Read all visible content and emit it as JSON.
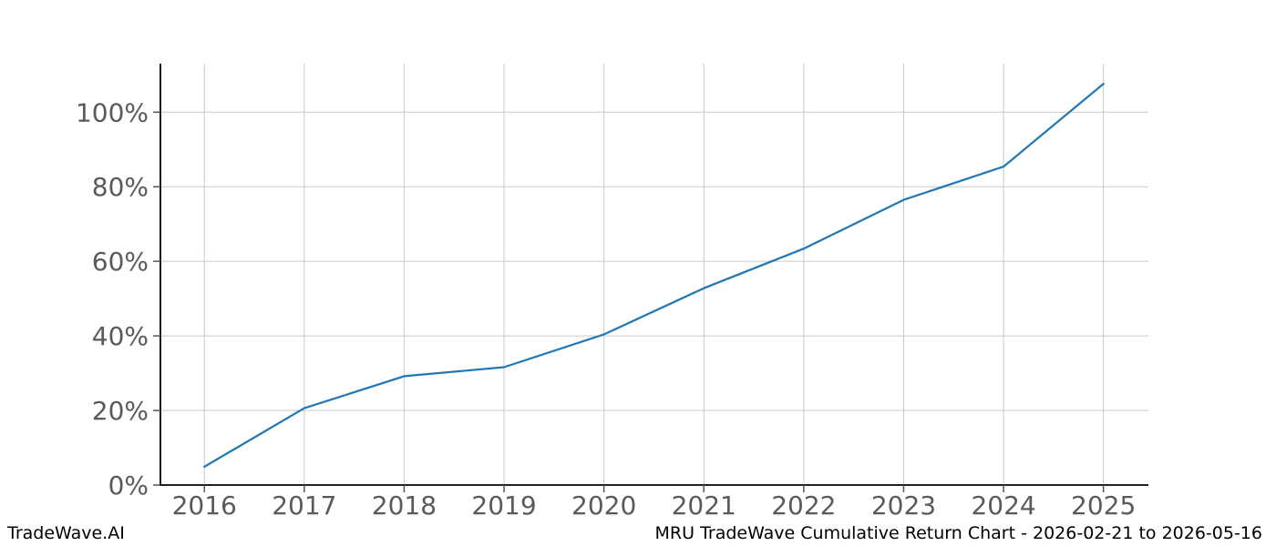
{
  "footer": {
    "brand": "TradeWave.AI",
    "title": "MRU TradeWave Cumulative Return Chart - 2026-02-21 to 2026-05-16"
  },
  "colors": {
    "line": "#1f77b4",
    "grid": "#c9c9c9",
    "spine": "#000000",
    "tick": "#555555",
    "tick_label": "#5a5a5a",
    "background": "#ffffff",
    "footer_text": "#000000"
  },
  "chart_data": {
    "type": "line",
    "title": "MRU TradeWave Cumulative Return Chart - 2026-02-21 to 2026-05-16",
    "series": [
      {
        "name": "MRU cumulative return (%)",
        "x": [
          2016,
          2017,
          2018,
          2019,
          2020,
          2021,
          2022,
          2023,
          2024,
          2025
        ],
        "values": [
          4.9,
          20.6,
          29.2,
          31.6,
          40.4,
          52.8,
          63.4,
          76.5,
          85.4,
          107.6
        ]
      }
    ],
    "xlabel": "",
    "ylabel": "",
    "x_ticks": [
      2016,
      2017,
      2018,
      2019,
      2020,
      2021,
      2022,
      2023,
      2024,
      2025
    ],
    "x_tick_labels": [
      "2016",
      "2017",
      "2018",
      "2019",
      "2020",
      "2021",
      "2022",
      "2023",
      "2024",
      "2025"
    ],
    "y_ticks": [
      0,
      20,
      40,
      60,
      80,
      100
    ],
    "y_tick_labels": [
      "0%",
      "20%",
      "40%",
      "60%",
      "80%",
      "100%"
    ],
    "xlim": [
      2015.56,
      2025.45
    ],
    "ylim": [
      0,
      113
    ],
    "grid": true,
    "legend": false
  }
}
